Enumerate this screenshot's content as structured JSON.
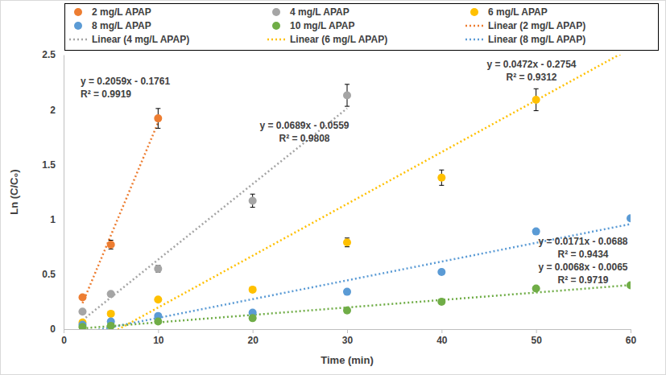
{
  "chart_data": {
    "type": "scatter",
    "x_label": "Time (min)",
    "y_label": "Ln (C/C₀)",
    "xlim": [
      0,
      60
    ],
    "xticks": [
      0,
      10,
      20,
      30,
      40,
      50,
      60
    ],
    "ylim": [
      0,
      2.5
    ],
    "yticks": [
      0,
      0.5,
      1,
      1.5,
      2,
      2.5
    ],
    "grid": false,
    "legend": "top",
    "series": [
      {
        "name": "2 mg/L APAP",
        "color": "#ED7D31",
        "marker": "circle",
        "x": [
          2,
          5,
          10
        ],
        "values": [
          0.29,
          0.77,
          1.92
        ],
        "errors": [
          0.02,
          0.04,
          0.09
        ],
        "trendline": {
          "name": "Linear (2 mg/L APAP)",
          "line_style": "dotted",
          "slope": 0.2059,
          "intercept": -0.1761,
          "x": [
            2,
            10
          ],
          "equation": "y = 0.2059x - 0.1761",
          "r_squared": "R² = 0.9919"
        }
      },
      {
        "name": "4 mg/L APAP",
        "color": "#A5A5A5",
        "marker": "circle",
        "x": [
          2,
          5,
          10,
          20,
          30
        ],
        "values": [
          0.16,
          0.32,
          0.55,
          1.17,
          2.13
        ],
        "errors": [
          0.01,
          0.02,
          0.03,
          0.06,
          0.1
        ],
        "trendline": {
          "name": "Linear (4 mg/L APAP)",
          "line_style": "dotted",
          "slope": 0.0689,
          "intercept": -0.0559,
          "x": [
            2,
            30
          ],
          "equation": "y = 0.0689x - 0.0559",
          "r_squared": "R² = 0.9808"
        }
      },
      {
        "name": "6 mg/L APAP",
        "color": "#FFC000",
        "marker": "circle",
        "x": [
          2,
          5,
          10,
          20,
          30,
          40,
          50
        ],
        "values": [
          0.06,
          0.14,
          0.27,
          0.36,
          0.79,
          1.38,
          2.09
        ],
        "errors": [
          0.01,
          0.01,
          0.01,
          0.02,
          0.04,
          0.07,
          0.1
        ],
        "trendline": {
          "name": "Linear (6 mg/L APAP)",
          "line_style": "dotted",
          "slope": 0.0472,
          "intercept": -0.2754,
          "x": [
            2,
            60
          ],
          "equation": "y = 0.0472x - 0.2754",
          "r_squared": "R² = 0.9312"
        }
      },
      {
        "name": "8 mg/L APAP",
        "color": "#5B9BD5",
        "marker": "circle",
        "x": [
          2,
          5,
          10,
          20,
          30,
          40,
          50,
          60
        ],
        "values": [
          0.04,
          0.07,
          0.12,
          0.15,
          0.34,
          0.52,
          0.89,
          1.01
        ],
        "errors": [
          0.01,
          0.01,
          0.01,
          0.01,
          0.01,
          0.02,
          0.02,
          0.02
        ],
        "trendline": {
          "name": "Linear (8 mg/L APAP)",
          "line_style": "dotted",
          "slope": 0.0171,
          "intercept": -0.0688,
          "x": [
            2,
            60
          ],
          "equation": "y = 0.0171x - 0.0688",
          "r_squared": "R² = 0.9434"
        }
      },
      {
        "name": "10 mg/L APAP",
        "color": "#70AD47",
        "marker": "circle",
        "x": [
          2,
          5,
          10,
          20,
          30,
          40,
          50,
          60
        ],
        "values": [
          0.02,
          0.03,
          0.07,
          0.1,
          0.17,
          0.25,
          0.37,
          0.4
        ],
        "errors": [
          0.01,
          0.01,
          0.01,
          0.01,
          0.01,
          0.01,
          0.01,
          0.01
        ],
        "trendline": {
          "line_style": "dotted",
          "slope": 0.0068,
          "intercept": -0.0065,
          "x": [
            2,
            60
          ],
          "equation": "y = 0.0068x - 0.0065",
          "r_squared": "R² = 0.9719"
        }
      }
    ]
  }
}
